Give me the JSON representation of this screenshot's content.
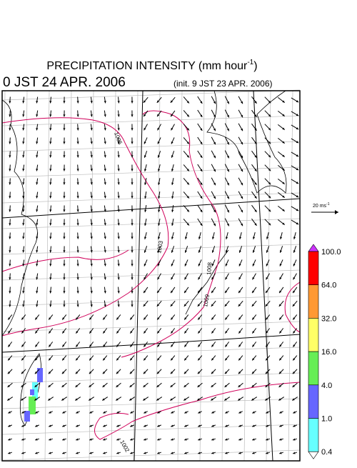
{
  "header": {
    "title_main": "PRECIPITATION INTENSITY (mm hour",
    "title_sup": "-1",
    "title_end": ")",
    "valid_time": "0 JST 24 APR. 2006",
    "init_time": "(init. 9 JST 23 APR. 2006)"
  },
  "reference_vector": {
    "label_main": "20 ms",
    "label_sup": "-1"
  },
  "colorbar": {
    "labels": [
      "100.0",
      "64.0",
      "32.0",
      "16.0",
      "4.0",
      "1.0",
      "0.4"
    ],
    "colors": [
      "#ff0000",
      "#ff9933",
      "#ffff66",
      "#66ee55",
      "#6666ff",
      "#66ffff"
    ],
    "over_color": "#cc33ff",
    "under_color": "#ffffff"
  },
  "contour_labels": [
    "1005",
    "1003",
    "1008",
    "1009",
    "1002"
  ]
}
